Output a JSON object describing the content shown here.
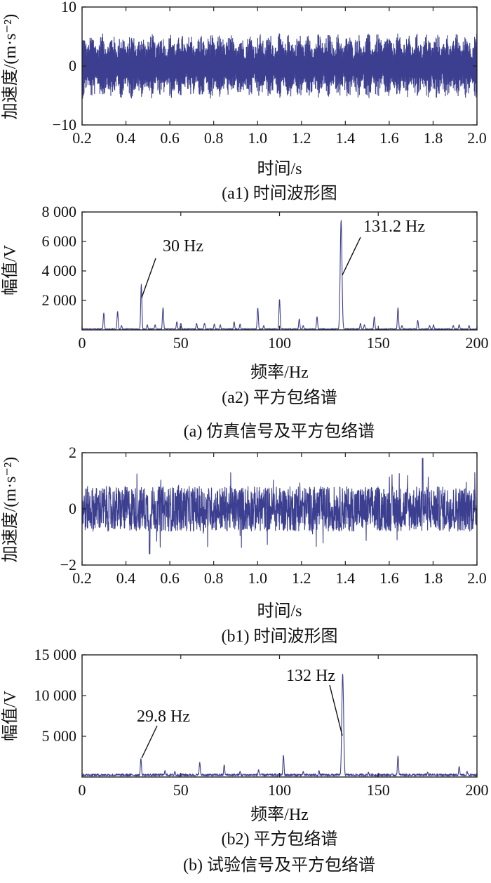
{
  "figure": {
    "caption_a": "(a) 仿真信号及平方包络谱",
    "caption_b": "(b) 试验信号及平方包络谱"
  },
  "colors": {
    "trace": "#3c3f8f"
  },
  "chart_data": [
    {
      "id": "a1",
      "type": "line",
      "caption": "(a1) 时间波形图",
      "xlabel": "时间/s",
      "ylabel": "加速度/(m·s⁻²)",
      "xlim": [
        0.2,
        2.0
      ],
      "ylim": [
        -10,
        10
      ],
      "xticks": [
        0.2,
        0.4,
        0.6,
        0.8,
        1.0,
        1.2,
        1.4,
        1.6,
        1.8,
        2.0
      ],
      "xtick_labels": [
        "0.2",
        "0.4",
        "0.6",
        "0.8",
        "1.0",
        "1.2",
        "1.4",
        "1.6",
        "1.8",
        "2.0"
      ],
      "yticks": [
        10,
        0,
        -10
      ],
      "ytick_labels": [
        "10",
        "0",
        "−10"
      ],
      "grid": false,
      "signal": {
        "kind": "dense_oscillation",
        "amplitude_envelope": [
          -5.5,
          5.5
        ],
        "sample_rate_points": 1800
      }
    },
    {
      "id": "a2",
      "type": "line",
      "caption": "(a2) 平方包络谱",
      "xlabel": "频率/Hz",
      "ylabel": "幅值/V",
      "xlim": [
        0,
        200
      ],
      "ylim": [
        0,
        8000
      ],
      "xticks": [
        0,
        50,
        100,
        150,
        200
      ],
      "xtick_labels": [
        "0",
        "50",
        "100",
        "150",
        "200"
      ],
      "yticks": [
        2000,
        4000,
        6000,
        8000
      ],
      "ytick_labels": [
        "2 000",
        "4 000",
        "6 000",
        "8 000"
      ],
      "grid": false,
      "baseline": 60,
      "peaks": [
        [
          11,
          1150
        ],
        [
          18,
          1250
        ],
        [
          20,
          300
        ],
        [
          30,
          3100
        ],
        [
          33,
          350
        ],
        [
          37,
          350
        ],
        [
          41,
          1500
        ],
        [
          48,
          550
        ],
        [
          50,
          450
        ],
        [
          58,
          450
        ],
        [
          62,
          450
        ],
        [
          67,
          400
        ],
        [
          70,
          350
        ],
        [
          77,
          550
        ],
        [
          80,
          400
        ],
        [
          89,
          1500
        ],
        [
          92,
          300
        ],
        [
          100,
          2100
        ],
        [
          110,
          750
        ],
        [
          112,
          300
        ],
        [
          119,
          900
        ],
        [
          131.2,
          7450
        ],
        [
          141,
          450
        ],
        [
          143,
          350
        ],
        [
          148,
          900
        ],
        [
          160,
          1500
        ],
        [
          162,
          300
        ],
        [
          170,
          650
        ],
        [
          176,
          300
        ],
        [
          178,
          350
        ],
        [
          188,
          300
        ],
        [
          191,
          350
        ],
        [
          196,
          300
        ]
      ],
      "annotations": [
        {
          "text": "30 Hz",
          "x": 30,
          "y": 3100
        },
        {
          "text": "131.2 Hz",
          "x": 131.2,
          "y": 7450
        }
      ]
    },
    {
      "id": "b1",
      "type": "line",
      "caption": "(b1) 时间波形图",
      "xlabel": "时间/s",
      "ylabel": "加速度/(m·s⁻²)",
      "xlim": [
        0.2,
        2.0
      ],
      "ylim": [
        -2,
        2
      ],
      "xticks": [
        0.2,
        0.4,
        0.6,
        0.8,
        1.0,
        1.2,
        1.4,
        1.6,
        1.8,
        2.0
      ],
      "xtick_labels": [
        "0.2",
        "0.4",
        "0.6",
        "0.8",
        "1.0",
        "1.2",
        "1.4",
        "1.6",
        "1.8",
        "2.0"
      ],
      "yticks": [
        2,
        0,
        -2
      ],
      "ytick_labels": [
        "2",
        "0",
        "−2"
      ],
      "grid": false,
      "signal": {
        "kind": "noisy_impulses",
        "amplitude_envelope": [
          -1.6,
          1.8
        ],
        "sample_rate_points": 1800
      }
    },
    {
      "id": "b2",
      "type": "line",
      "caption": "(b2) 平方包络谱",
      "xlabel": "频率/Hz",
      "ylabel": "幅值/V",
      "xlim": [
        0,
        200
      ],
      "ylim": [
        0,
        15000
      ],
      "xticks": [
        0,
        50,
        100,
        150,
        200
      ],
      "xtick_labels": [
        "0",
        "50",
        "100",
        "150",
        "200"
      ],
      "yticks": [
        5000,
        10000,
        15000
      ],
      "ytick_labels": [
        "5 000",
        "10 000",
        "15 000"
      ],
      "grid": false,
      "baseline": 250,
      "peaks": [
        [
          29.8,
          2300
        ],
        [
          42,
          800
        ],
        [
          47,
          700
        ],
        [
          59.6,
          1800
        ],
        [
          72,
          1500
        ],
        [
          80,
          700
        ],
        [
          89.4,
          900
        ],
        [
          102,
          2700
        ],
        [
          112,
          700
        ],
        [
          120,
          800
        ],
        [
          132,
          12700
        ],
        [
          145,
          600
        ],
        [
          160,
          2600
        ],
        [
          175,
          600
        ],
        [
          191,
          1300
        ],
        [
          195,
          700
        ]
      ],
      "annotations": [
        {
          "text": "29.8 Hz",
          "x": 29.8,
          "y": 2300
        },
        {
          "text": "132 Hz",
          "x": 132,
          "y": 12700
        }
      ]
    }
  ]
}
